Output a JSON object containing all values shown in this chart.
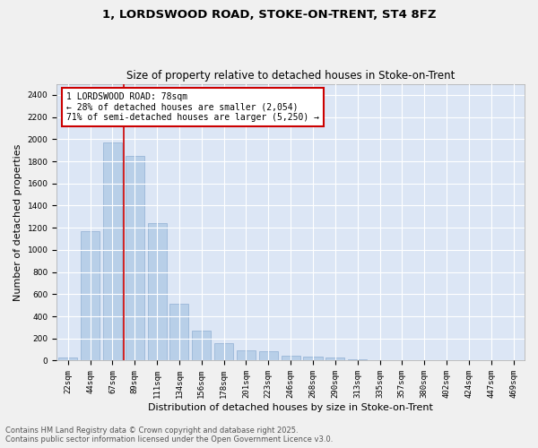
{
  "title_line1": "1, LORDSWOOD ROAD, STOKE-ON-TRENT, ST4 8FZ",
  "title_line2": "Size of property relative to detached houses in Stoke-on-Trent",
  "xlabel": "Distribution of detached houses by size in Stoke-on-Trent",
  "ylabel": "Number of detached properties",
  "categories": [
    "22sqm",
    "44sqm",
    "67sqm",
    "89sqm",
    "111sqm",
    "134sqm",
    "156sqm",
    "178sqm",
    "201sqm",
    "223sqm",
    "246sqm",
    "268sqm",
    "290sqm",
    "313sqm",
    "335sqm",
    "357sqm",
    "380sqm",
    "402sqm",
    "424sqm",
    "447sqm",
    "469sqm"
  ],
  "values": [
    25,
    1170,
    1970,
    1850,
    1245,
    515,
    270,
    160,
    95,
    85,
    45,
    38,
    32,
    12,
    6,
    3,
    2,
    1,
    1,
    0,
    0
  ],
  "bar_color": "#b8cfe8",
  "bar_edge_color": "#90afd4",
  "background_color": "#dce6f5",
  "grid_color": "#ffffff",
  "vline_color": "#cc0000",
  "vline_pos": 2.5,
  "annotation_text": "1 LORDSWOOD ROAD: 78sqm\n← 28% of detached houses are smaller (2,054)\n71% of semi-detached houses are larger (5,250) →",
  "annotation_box_color": "#cc0000",
  "ylim": [
    0,
    2500
  ],
  "yticks": [
    0,
    200,
    400,
    600,
    800,
    1000,
    1200,
    1400,
    1600,
    1800,
    2000,
    2200,
    2400
  ],
  "footer_line1": "Contains HM Land Registry data © Crown copyright and database right 2025.",
  "footer_line2": "Contains public sector information licensed under the Open Government Licence v3.0.",
  "title_fontsize": 9.5,
  "subtitle_fontsize": 8.5,
  "axis_label_fontsize": 8,
  "tick_fontsize": 6.5,
  "annotation_fontsize": 7,
  "footer_fontsize": 6,
  "fig_width": 6.0,
  "fig_height": 5.0,
  "fig_bg": "#f0f0f0"
}
